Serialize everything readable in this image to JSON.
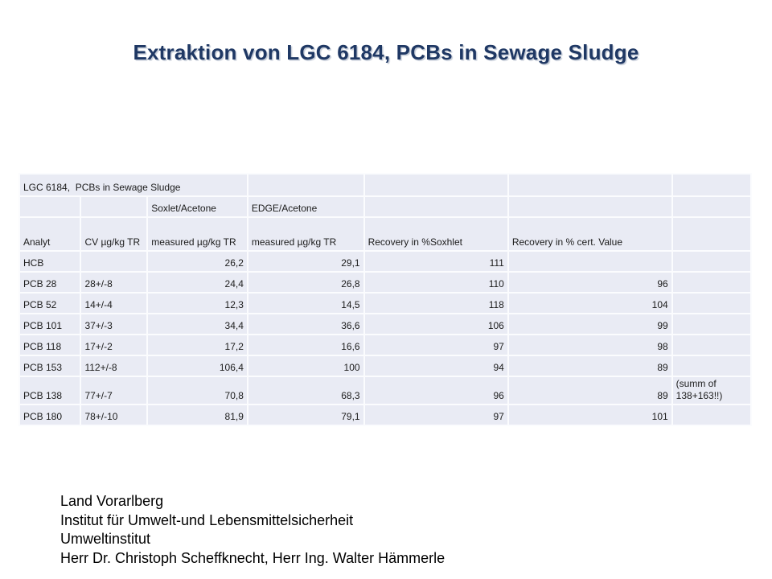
{
  "slide": {
    "title": "Extraktion von LGC 6184, PCBs in Sewage Sludge",
    "title_color": "#1f3864"
  },
  "table": {
    "caption_row": {
      "text": "LGC 6184,  PCBs in Sewage Sludge"
    },
    "method_row": [
      "",
      "",
      "Soxlet/Acetone",
      "EDGE/Acetone",
      "",
      "",
      ""
    ],
    "header_row": [
      "Analyt",
      "CV µg/kg TR",
      "measured µg/kg TR",
      "measured µg/kg TR",
      "Recovery in %Soxhlet",
      "Recovery in % cert. Value",
      ""
    ],
    "rows": [
      [
        "HCB",
        "",
        "26,2",
        "29,1",
        "111",
        "",
        ""
      ],
      [
        "PCB 28",
        "28+/-8",
        "24,4",
        "26,8",
        "110",
        "96",
        ""
      ],
      [
        "PCB 52",
        "14+/-4",
        "12,3",
        "14,5",
        "118",
        "104",
        ""
      ],
      [
        "PCB 101",
        "37+/-3",
        "34,4",
        "36,6",
        "106",
        "99",
        ""
      ],
      [
        "PCB 118",
        "17+/-2",
        "17,2",
        "16,6",
        "97",
        "98",
        ""
      ],
      [
        "PCB 153",
        "112+/-8",
        "106,4",
        "100",
        "94",
        "89",
        ""
      ],
      [
        "PCB 138",
        "77+/-7",
        "70,8",
        "68,3",
        "96",
        "89",
        "(summ of 138+163!!)"
      ],
      [
        "PCB 180",
        "78+/-10",
        "81,9",
        "79,1",
        "97",
        "101",
        ""
      ]
    ],
    "cell_fill": "#e9ebf4",
    "grid_color": "#fbfcfe"
  },
  "footer": {
    "lines": [
      "Land Vorarlberg",
      "Institut für Umwelt-und Lebensmittelsicherheit",
      "Umweltinstitut",
      "Herr Dr. Christoph Scheffknecht, Herr Ing. Walter Hämmerle"
    ]
  }
}
